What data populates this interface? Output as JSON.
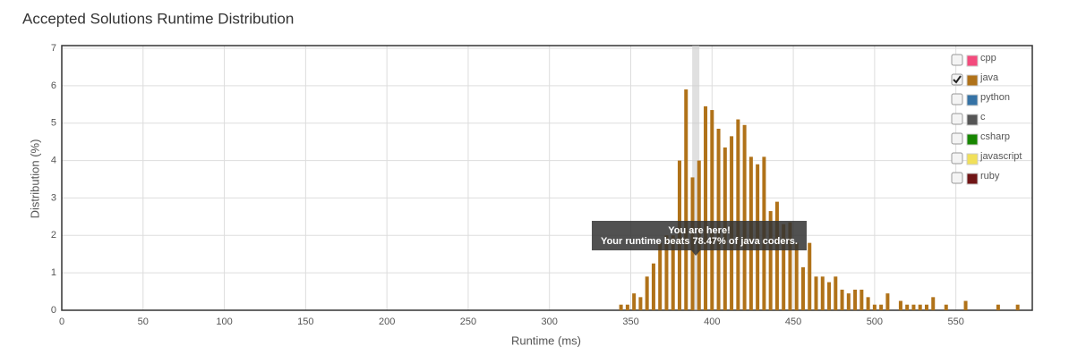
{
  "chart_data": {
    "type": "bar",
    "title": "Accepted Solutions Runtime Distribution",
    "x_label": "Runtime (ms)",
    "y_label": "Distribution (%)",
    "x": [
      344,
      348,
      352,
      356,
      360,
      364,
      368,
      372,
      376,
      380,
      384,
      388,
      392,
      396,
      400,
      404,
      408,
      412,
      416,
      420,
      424,
      428,
      432,
      436,
      440,
      444,
      448,
      452,
      456,
      460,
      464,
      468,
      472,
      476,
      480,
      484,
      488,
      492,
      496,
      500,
      504,
      508,
      516,
      520,
      524,
      528,
      532,
      536,
      544,
      556,
      576,
      588
    ],
    "series": [
      {
        "name": "java",
        "color": "#b07219",
        "values": [
          0.15,
          0.15,
          0.45,
          0.35,
          0.9,
          1.25,
          1.8,
          2.0,
          2.0,
          4.0,
          5.9,
          3.55,
          4.0,
          5.45,
          5.35,
          4.85,
          4.35,
          4.65,
          5.1,
          4.95,
          4.1,
          3.9,
          4.1,
          2.65,
          2.9,
          2.3,
          2.35,
          1.8,
          1.15,
          1.8,
          0.9,
          0.9,
          0.75,
          0.9,
          0.55,
          0.45,
          0.55,
          0.55,
          0.35,
          0.15,
          0.15,
          0.45,
          0.25,
          0.15,
          0.15,
          0.15,
          0.15,
          0.35,
          0.15,
          0.25,
          0.15,
          0.15
        ]
      }
    ],
    "legend": [
      {
        "name": "cpp",
        "color": "#f34b7d",
        "checked": false
      },
      {
        "name": "java",
        "color": "#b07219",
        "checked": true
      },
      {
        "name": "python",
        "color": "#3572a5",
        "checked": false
      },
      {
        "name": "c",
        "color": "#555555",
        "checked": false
      },
      {
        "name": "csharp",
        "color": "#178600",
        "checked": false
      },
      {
        "name": "javascript",
        "color": "#f1e05a",
        "checked": false
      },
      {
        "name": "ruby",
        "color": "#701516",
        "checked": false
      }
    ],
    "highlight_x": 390,
    "annotation": {
      "title": "You are here!",
      "text": "Your runtime beats 78.47% of java coders."
    },
    "xlim": [
      0,
      597
    ],
    "xticks": [
      0,
      50,
      100,
      150,
      200,
      250,
      300,
      350,
      400,
      450,
      500,
      550
    ],
    "ylim": [
      0,
      7
    ],
    "yticks": [
      0,
      1,
      2,
      3,
      4,
      5,
      6,
      7
    ],
    "grid": true
  }
}
